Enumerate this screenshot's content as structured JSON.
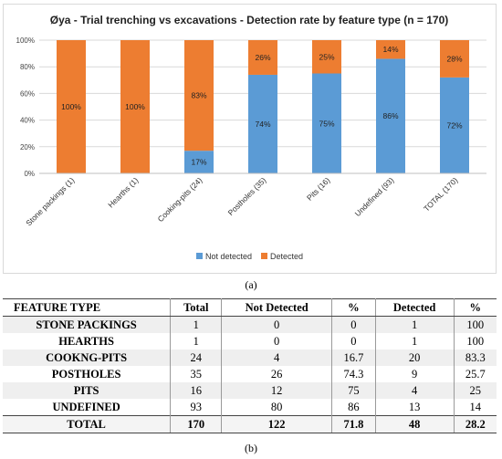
{
  "chart_data": {
    "type": "bar",
    "stacked": true,
    "title": "Øya - Trial trenching vs excavations - Detection rate by feature type (n = 170)",
    "categories": [
      "Stone packings (1)",
      "Hearths (1)",
      "Cooking-pits (24)",
      "Postholes (35)",
      "Pits (16)",
      "Undefined (93)",
      "TOTAL (170)"
    ],
    "series": [
      {
        "name": "Not detected",
        "color": "#5b9bd5",
        "values": [
          0,
          0,
          17,
          74,
          75,
          86,
          72
        ],
        "labels": [
          "",
          "",
          "17%",
          "74%",
          "75%",
          "86%",
          "72%"
        ]
      },
      {
        "name": "Detected",
        "color": "#ed7d31",
        "values": [
          100,
          100,
          83,
          26,
          25,
          14,
          28
        ],
        "labels": [
          "100%",
          "100%",
          "83%",
          "26%",
          "25%",
          "14%",
          "28%"
        ]
      }
    ],
    "ylim": [
      0,
      100
    ],
    "yticks": [
      "0%",
      "20%",
      "40%",
      "60%",
      "80%",
      "100%"
    ],
    "grid": true,
    "legend_position": "bottom"
  },
  "captions": {
    "a": "(a)",
    "b": "(b)"
  },
  "table": {
    "headers": [
      "FEATURE TYPE",
      "Total",
      "Not Detected",
      "%",
      "Detected",
      "%"
    ],
    "rows": [
      [
        "STONE PACKINGS",
        "1",
        "0",
        "0",
        "1",
        "100"
      ],
      [
        "HEARTHS",
        "1",
        "0",
        "0",
        "1",
        "100"
      ],
      [
        "COOKNG-PITS",
        "24",
        "4",
        "16.7",
        "20",
        "83.3"
      ],
      [
        "POSTHOLES",
        "35",
        "26",
        "74.3",
        "9",
        "25.7"
      ],
      [
        "PITS",
        "16",
        "12",
        "75",
        "4",
        "25"
      ],
      [
        "UNDEFINED",
        "93",
        "80",
        "86",
        "13",
        "14"
      ]
    ],
    "total": [
      "TOTAL",
      "170",
      "122",
      "71.8",
      "48",
      "28.2"
    ]
  }
}
